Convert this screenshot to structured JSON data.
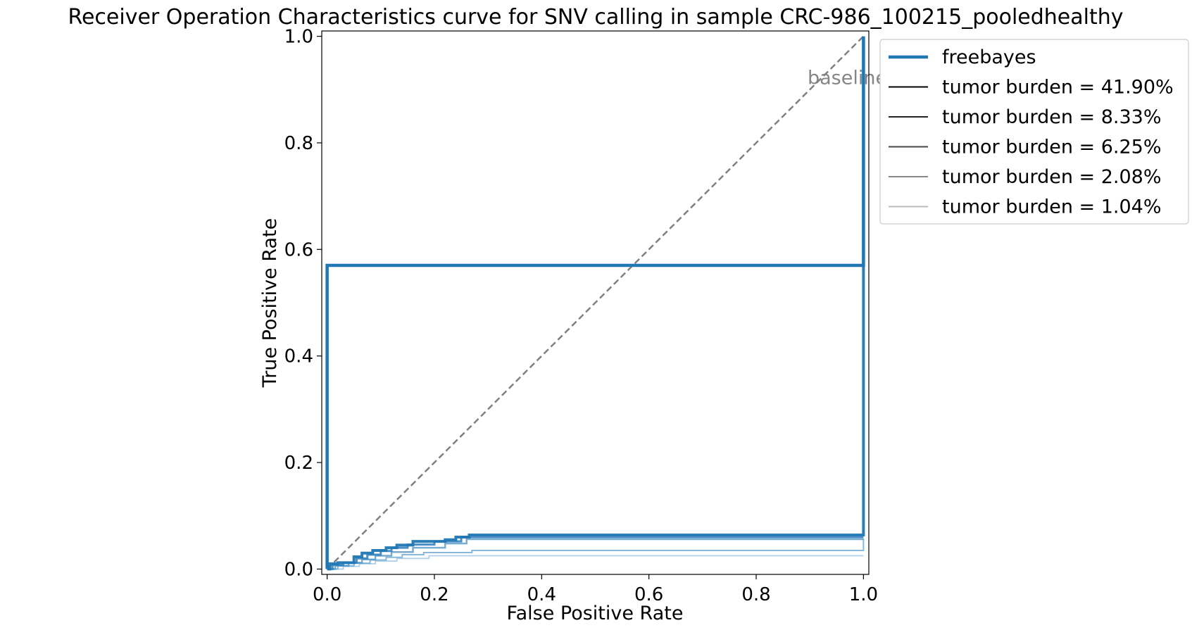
{
  "chart_data": {
    "type": "line",
    "title": "Receiver Operation Characteristics curve for SNV calling in sample CRC-986_100215_pooledhealthy",
    "xlabel": "False Positive Rate",
    "ylabel": "True Positive Rate",
    "xlim": [
      -0.01,
      1.01
    ],
    "ylim": [
      -0.01,
      1.01
    ],
    "xticks": [
      0.0,
      0.2,
      0.4,
      0.6,
      0.8,
      1.0
    ],
    "xtick_labels": [
      "0.0",
      "0.2",
      "0.4",
      "0.6",
      "0.8",
      "1.0"
    ],
    "yticks": [
      0.0,
      0.2,
      0.4,
      0.6,
      0.8,
      1.0
    ],
    "ytick_labels": [
      "0.0",
      "0.2",
      "0.4",
      "0.6",
      "0.8",
      "1.0"
    ],
    "grid": false,
    "legend_position": "outside-top-right",
    "baseline": {
      "label": "baseline",
      "x": [
        0,
        1
      ],
      "y": [
        0,
        1
      ],
      "color": "#808080",
      "style": "dashed",
      "label_at": [
        0.97,
        0.91
      ]
    },
    "series": [
      {
        "name": "freebayes",
        "legend_color": "#1f77b4",
        "color": "#1f77b4",
        "opacity": 1.0,
        "width": 4.5,
        "x": [
          0,
          0,
          1,
          1
        ],
        "y": [
          0,
          0.57,
          0.57,
          1.0
        ]
      },
      {
        "name": "tumor burden = 41.90%",
        "legend_color": "#000000",
        "color": "#1f77b4",
        "opacity": 0.95,
        "width": 4,
        "x": [
          0,
          0.005,
          0.005,
          0.02,
          0.02,
          0.05,
          0.05,
          0.065,
          0.065,
          0.085,
          0.085,
          0.11,
          0.11,
          0.13,
          0.13,
          0.16,
          0.16,
          0.22,
          0.22,
          0.24,
          0.24,
          0.265,
          0.265,
          1.0,
          1.0
        ],
        "y": [
          0,
          0,
          0.01,
          0.01,
          0.012,
          0.012,
          0.023,
          0.023,
          0.03,
          0.03,
          0.035,
          0.035,
          0.04,
          0.04,
          0.045,
          0.045,
          0.052,
          0.052,
          0.055,
          0.055,
          0.06,
          0.06,
          0.064,
          0.064,
          0.57
        ]
      },
      {
        "name": "tumor burden = 8.33%",
        "legend_color": "#222222",
        "color": "#2b7bba",
        "opacity": 0.85,
        "width": 3,
        "x": [
          0,
          0.01,
          0.01,
          0.03,
          0.03,
          0.055,
          0.055,
          0.075,
          0.075,
          0.1,
          0.1,
          0.12,
          0.12,
          0.15,
          0.15,
          0.2,
          0.2,
          0.25,
          0.25,
          1.0
        ],
        "y": [
          0,
          0,
          0.008,
          0.008,
          0.012,
          0.012,
          0.02,
          0.02,
          0.027,
          0.027,
          0.034,
          0.034,
          0.04,
          0.04,
          0.046,
          0.046,
          0.052,
          0.052,
          0.06,
          0.06
        ]
      },
      {
        "name": "tumor burden = 6.25%",
        "legend_color": "#444444",
        "color": "#4a90c4",
        "opacity": 0.75,
        "width": 2.5,
        "x": [
          0,
          0.015,
          0.015,
          0.04,
          0.04,
          0.065,
          0.065,
          0.09,
          0.09,
          0.12,
          0.12,
          0.16,
          0.16,
          0.22,
          0.22,
          0.26,
          0.26,
          1.0
        ],
        "y": [
          0,
          0,
          0.006,
          0.006,
          0.012,
          0.012,
          0.018,
          0.018,
          0.025,
          0.025,
          0.032,
          0.032,
          0.04,
          0.04,
          0.048,
          0.048,
          0.056,
          0.056
        ]
      },
      {
        "name": "tumor burden = 2.08%",
        "legend_color": "#888888",
        "color": "#6aa6d2",
        "opacity": 0.8,
        "width": 2,
        "x": [
          0,
          0.02,
          0.02,
          0.05,
          0.05,
          0.08,
          0.08,
          0.11,
          0.11,
          0.14,
          0.14,
          0.18,
          0.18,
          0.27,
          0.27,
          1.0,
          1.0
        ],
        "y": [
          0,
          0,
          0.006,
          0.006,
          0.011,
          0.011,
          0.017,
          0.017,
          0.022,
          0.022,
          0.027,
          0.027,
          0.031,
          0.031,
          0.035,
          0.035,
          0.057
        ]
      },
      {
        "name": "tumor burden = 1.04%",
        "legend_color": "#bbbbbb",
        "color": "#a9cbe6",
        "opacity": 0.9,
        "width": 1.8,
        "x": [
          0,
          0.03,
          0.03,
          0.06,
          0.06,
          0.09,
          0.09,
          0.13,
          0.13,
          0.19,
          0.19,
          1.0
        ],
        "y": [
          0,
          0,
          0.005,
          0.005,
          0.01,
          0.01,
          0.015,
          0.015,
          0.02,
          0.02,
          0.025,
          0.025
        ]
      }
    ]
  }
}
